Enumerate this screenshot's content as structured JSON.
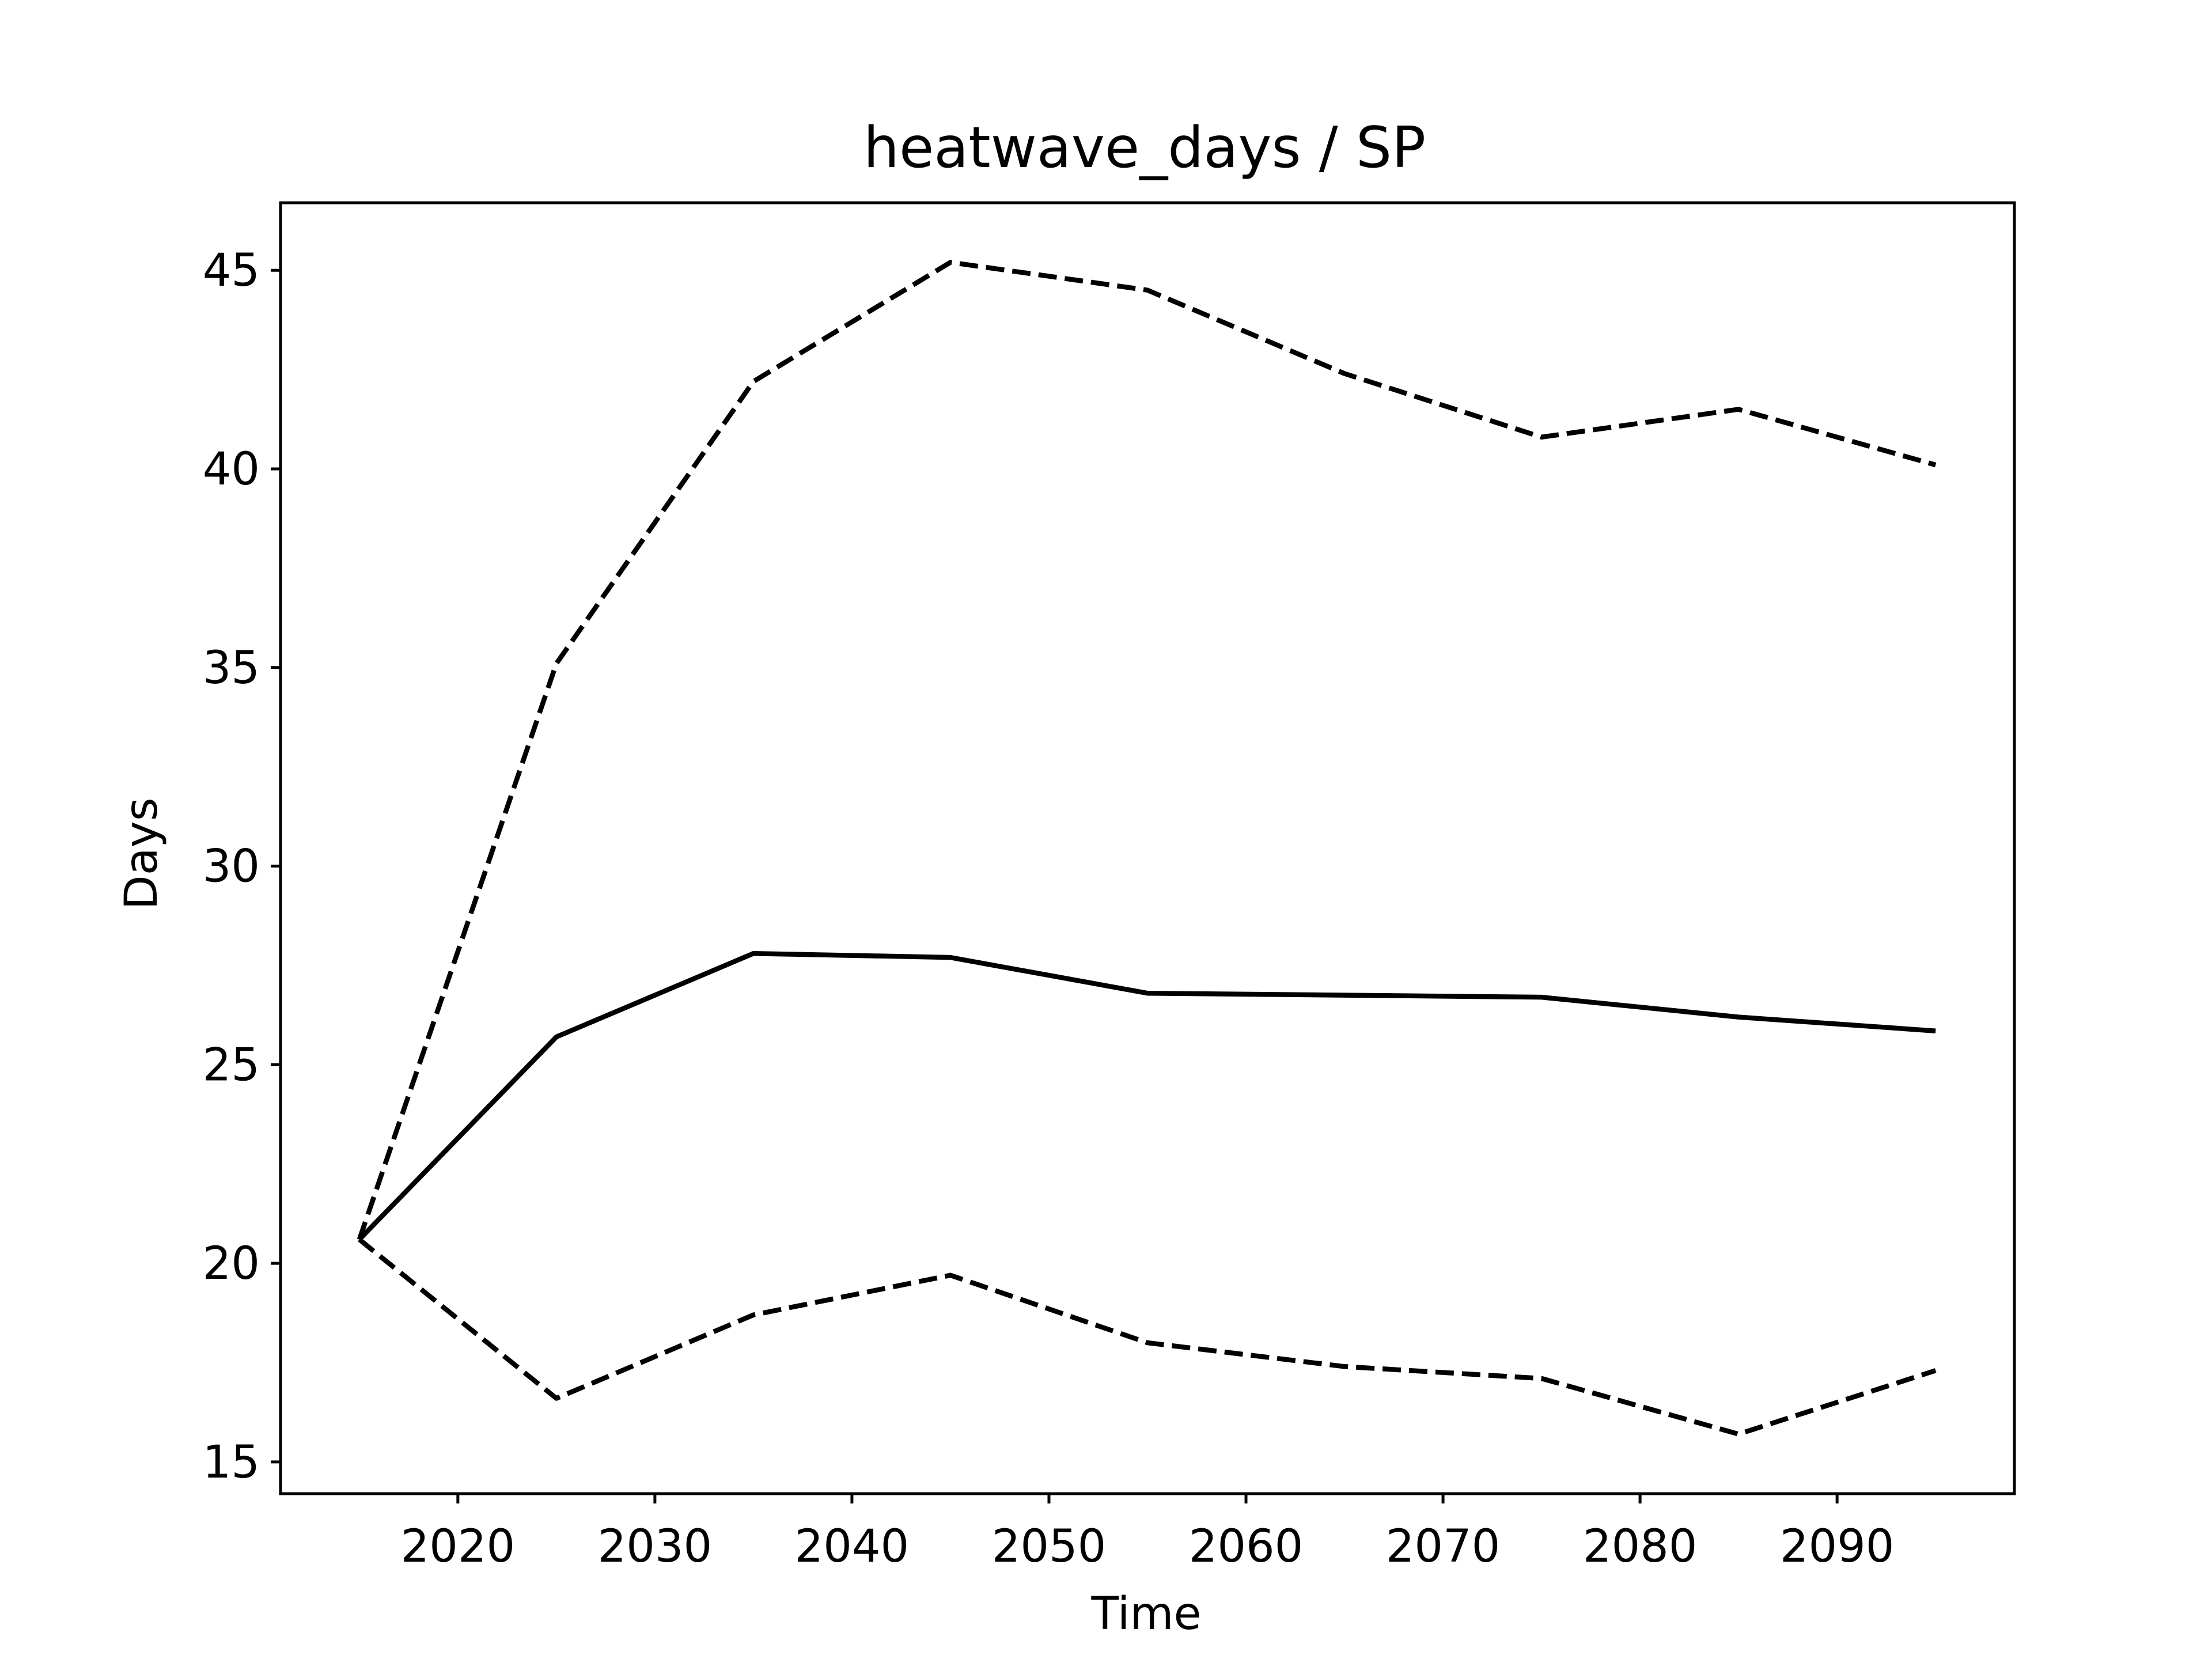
{
  "chart_data": {
    "type": "line",
    "title": "heatwave_days / SP",
    "xlabel": "Time",
    "ylabel": "Days",
    "xlim": [
      2011,
      2099
    ],
    "ylim": [
      14.2,
      46.7
    ],
    "xticks": [
      2020,
      2030,
      2040,
      2050,
      2060,
      2070,
      2080,
      2090
    ],
    "yticks": [
      15,
      20,
      25,
      30,
      35,
      40,
      45
    ],
    "grid": false,
    "x": [
      2015,
      2025,
      2035,
      2045,
      2055,
      2065,
      2075,
      2085,
      2095
    ],
    "series": [
      {
        "style": "solid",
        "color": "#000000",
        "values": [
          20.6,
          25.7,
          27.8,
          27.7,
          26.8,
          26.75,
          26.7,
          26.2,
          25.85
        ]
      },
      {
        "style": "dashed",
        "color": "#000000",
        "values": [
          20.6,
          35.1,
          42.2,
          45.2,
          44.5,
          42.4,
          40.8,
          41.5,
          40.1
        ]
      },
      {
        "style": "dashed",
        "color": "#000000",
        "values": [
          20.6,
          16.6,
          18.7,
          19.7,
          18.0,
          17.4,
          17.1,
          15.7,
          17.3
        ]
      }
    ]
  }
}
